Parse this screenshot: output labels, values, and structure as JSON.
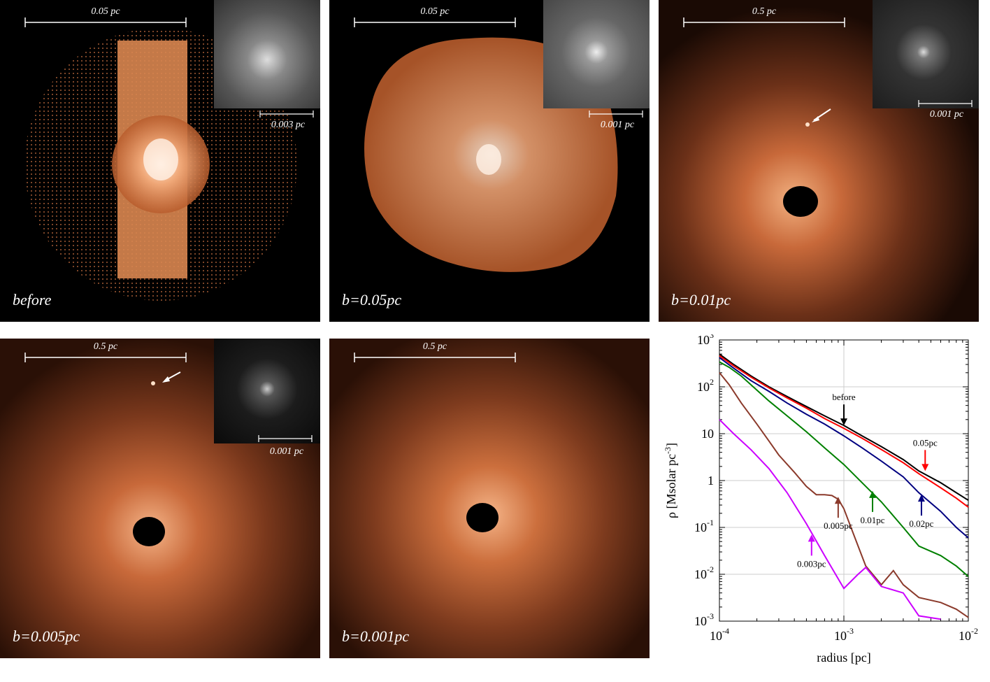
{
  "panels": [
    {
      "label": "before",
      "scale": "0.05 pc",
      "inset_scale": "0.003 pc"
    },
    {
      "label": "b=0.05pc",
      "scale": "0.05 pc",
      "inset_scale": "0.001 pc"
    },
    {
      "label": "b=0.01pc",
      "scale": "0.5 pc",
      "inset_scale": "0.001 pc"
    },
    {
      "label": "b=0.005pc",
      "scale": "0.5 pc",
      "inset_scale": "0.001 pc"
    },
    {
      "label": "b=0.001pc",
      "scale": "0.5 pc"
    }
  ],
  "colors": {
    "gas": "#e08a55",
    "black": "#000000",
    "white": "#ffffff"
  },
  "chart_data": {
    "type": "line",
    "title": "",
    "xlabel": "radius [pc]",
    "ylabel": "ρ [Msolar pc",
    "ylabel_sup": "-3",
    "ylabel_end": "]",
    "xscale": "log",
    "yscale": "log",
    "xlim": [
      0.0001,
      0.01
    ],
    "ylim": [
      0.001,
      1000
    ],
    "x_ticks": [
      {
        "b": "10",
        "e": "-4"
      },
      {
        "b": "10",
        "e": "-3"
      },
      {
        "b": "10",
        "e": "-2"
      }
    ],
    "y_ticks": [
      {
        "b": "10",
        "e": "-3"
      },
      {
        "b": "10",
        "e": "-2"
      },
      {
        "b": "10",
        "e": "-1"
      },
      {
        "b": "1",
        "e": ""
      },
      {
        "b": "10",
        "e": ""
      },
      {
        "b": "10",
        "e": "2"
      },
      {
        "b": "10",
        "e": "3"
      }
    ],
    "series": [
      {
        "name": "before",
        "color": "#000000",
        "x": [
          0.0001,
          0.00013,
          0.00018,
          0.00025,
          0.00035,
          0.0005,
          0.0007,
          0.001,
          0.0014,
          0.002,
          0.003,
          0.004,
          0.006,
          0.008,
          0.01
        ],
        "y": [
          500,
          300,
          170,
          100,
          62,
          38,
          24,
          15,
          9,
          5.3,
          2.8,
          1.6,
          0.9,
          0.55,
          0.38
        ]
      },
      {
        "name": "0.05pc",
        "color": "#ff0000",
        "x": [
          0.0001,
          0.00013,
          0.00018,
          0.00025,
          0.00035,
          0.0005,
          0.0007,
          0.001,
          0.0014,
          0.002,
          0.003,
          0.004,
          0.006,
          0.008,
          0.01
        ],
        "y": [
          460,
          280,
          160,
          95,
          58,
          35,
          21,
          13,
          8,
          4.6,
          2.4,
          1.4,
          0.7,
          0.42,
          0.27
        ]
      },
      {
        "name": "0.02pc",
        "color": "#000080",
        "x": [
          0.0001,
          0.00013,
          0.00018,
          0.00025,
          0.00035,
          0.0005,
          0.0007,
          0.001,
          0.0014,
          0.002,
          0.003,
          0.004,
          0.006,
          0.008,
          0.01
        ],
        "y": [
          420,
          250,
          135,
          80,
          45,
          26,
          16,
          9,
          5,
          2.6,
          1.2,
          0.55,
          0.22,
          0.1,
          0.06
        ]
      },
      {
        "name": "0.01pc",
        "color": "#008000",
        "x": [
          0.0001,
          0.00012,
          0.00015,
          0.0002,
          0.00025,
          0.00035,
          0.0005,
          0.0007,
          0.001,
          0.0014,
          0.002,
          0.003,
          0.004,
          0.006,
          0.008,
          0.01
        ],
        "y": [
          340,
          260,
          170,
          85,
          50,
          24,
          11,
          5,
          2.2,
          0.9,
          0.35,
          0.1,
          0.04,
          0.025,
          0.015,
          0.009
        ]
      },
      {
        "name": "0.005pc",
        "color": "#8b3a2b",
        "x": [
          0.0001,
          0.00012,
          0.00015,
          0.0002,
          0.00025,
          0.0003,
          0.0004,
          0.0005,
          0.0006,
          0.0007,
          0.0008,
          0.0009,
          0.001,
          0.0012,
          0.0015,
          0.002,
          0.0025,
          0.003,
          0.004,
          0.006,
          0.008,
          0.01
        ],
        "y": [
          200,
          110,
          45,
          16,
          7,
          3.5,
          1.5,
          0.75,
          0.5,
          0.5,
          0.48,
          0.4,
          0.25,
          0.07,
          0.015,
          0.006,
          0.012,
          0.006,
          0.0032,
          0.0025,
          0.0018,
          0.0012
        ]
      },
      {
        "name": "0.003pc",
        "color": "#cc00ff",
        "x": [
          0.0001,
          0.00013,
          0.00018,
          0.00025,
          0.00035,
          0.0005,
          0.0007,
          0.001,
          0.0013,
          0.0015,
          0.002,
          0.003,
          0.004,
          0.006
        ],
        "y": [
          20,
          10,
          4.5,
          1.8,
          0.55,
          0.12,
          0.025,
          0.005,
          0.01,
          0.014,
          0.0055,
          0.004,
          0.0013,
          0.0011
        ]
      }
    ],
    "annotations": [
      {
        "text": "before",
        "series": "before",
        "x": 0.001,
        "y": 15,
        "dir": "down"
      },
      {
        "text": "0.05pc",
        "series": "0.05pc",
        "x": 0.0045,
        "y": 1.6,
        "dir": "down"
      },
      {
        "text": "0.02pc",
        "series": "0.02pc",
        "x": 0.0042,
        "y": 0.5,
        "dir": "up"
      },
      {
        "text": "0.01pc",
        "series": "0.01pc",
        "x": 0.0017,
        "y": 0.6,
        "dir": "up"
      },
      {
        "text": "0.005pc",
        "series": "0.005pc",
        "x": 0.0009,
        "y": 0.45,
        "dir": "up"
      },
      {
        "text": "0.003pc",
        "series": "0.003pc",
        "x": 0.00055,
        "y": 0.07,
        "dir": "up"
      }
    ]
  }
}
